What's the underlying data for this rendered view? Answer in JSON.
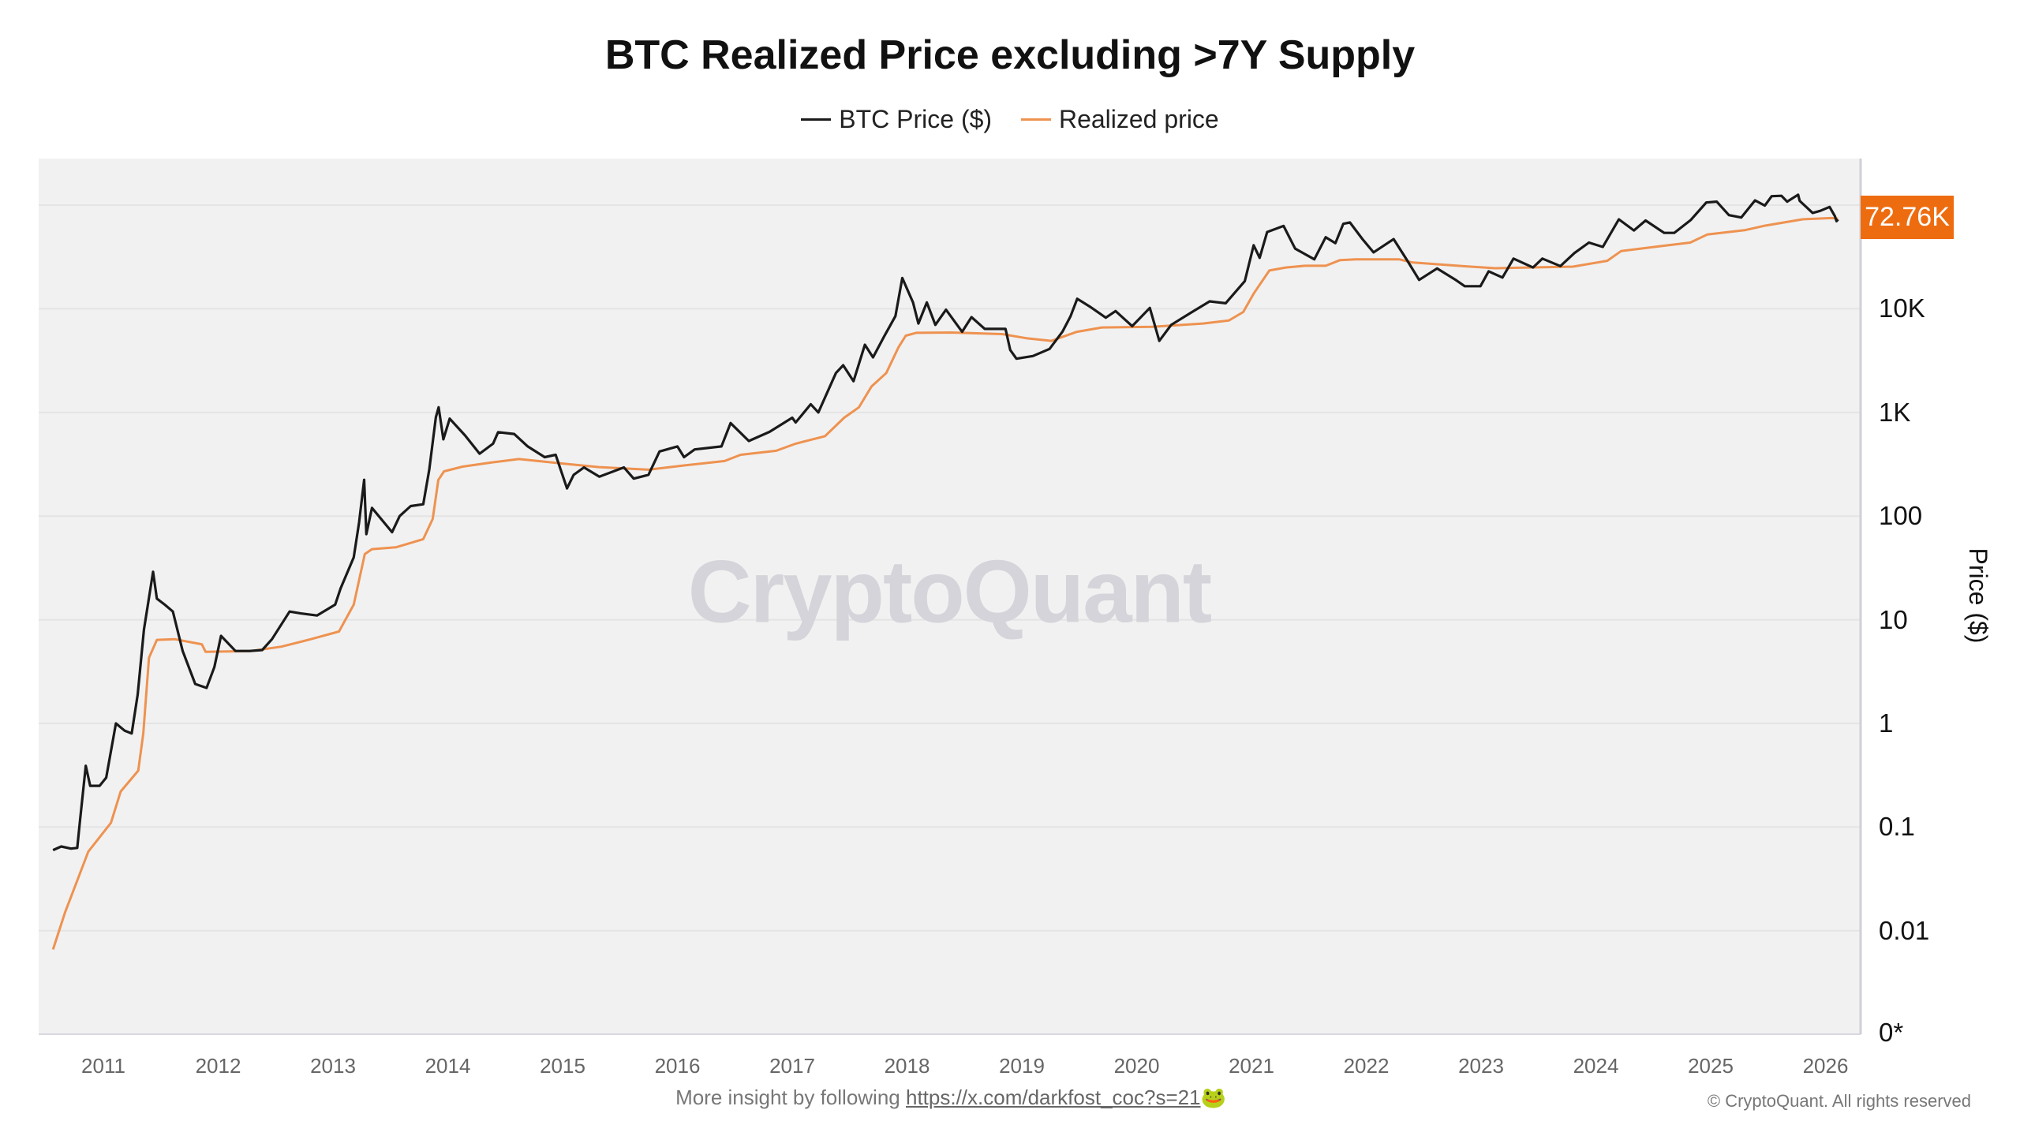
{
  "chart_data": {
    "type": "line",
    "title": "BTC Realized Price excluding >7Y Supply",
    "ylabel": "Price ($)",
    "yscale": "log",
    "ylim": [
      0.01,
      100000
    ],
    "y_ticks": [
      {
        "value": 0.01,
        "label": "0.01"
      },
      {
        "value": 0.1,
        "label": "0.1"
      },
      {
        "value": 1,
        "label": "1"
      },
      {
        "value": 10,
        "label": "10"
      },
      {
        "value": 100,
        "label": "100"
      },
      {
        "value": 1000,
        "label": "1K"
      },
      {
        "value": 10000,
        "label": "10K"
      }
    ],
    "y_zero_label": "0*",
    "x_ticks": [
      "2011",
      "2012",
      "2013",
      "2014",
      "2015",
      "2016",
      "2017",
      "2018",
      "2019",
      "2020",
      "2021",
      "2022",
      "2023",
      "2024",
      "2025",
      "2026"
    ],
    "grid": true,
    "legend_position": "top-center",
    "last_value_label": "72.76K",
    "last_value_color": "#ee6c10",
    "watermark": "CryptoQuant",
    "series": [
      {
        "name": "BTC Price ($)",
        "color": "#1a1a1a",
        "points": [
          [
            "2010-07-25",
            0.06
          ],
          [
            "2010-08-20",
            0.065
          ],
          [
            "2010-09-20",
            0.062
          ],
          [
            "2010-10-10",
            0.063
          ],
          [
            "2010-10-18",
            0.11
          ],
          [
            "2010-11-06",
            0.39
          ],
          [
            "2010-11-20",
            0.25
          ],
          [
            "2010-12-20",
            0.25
          ],
          [
            "2011-01-10",
            0.3
          ],
          [
            "2011-02-10",
            1.0
          ],
          [
            "2011-03-10",
            0.85
          ],
          [
            "2011-04-01",
            0.8
          ],
          [
            "2011-04-20",
            1.9
          ],
          [
            "2011-05-10",
            8
          ],
          [
            "2011-06-08",
            29
          ],
          [
            "2011-06-20",
            16
          ],
          [
            "2011-07-15",
            14
          ],
          [
            "2011-08-10",
            12
          ],
          [
            "2011-09-10",
            5
          ],
          [
            "2011-10-20",
            2.4
          ],
          [
            "2011-11-25",
            2.2
          ],
          [
            "2011-12-20",
            3.5
          ],
          [
            "2012-01-10",
            7
          ],
          [
            "2012-02-25",
            5
          ],
          [
            "2012-04-10",
            5
          ],
          [
            "2012-05-20",
            5.1
          ],
          [
            "2012-06-20",
            6.5
          ],
          [
            "2012-08-15",
            12
          ],
          [
            "2012-09-20",
            11.5
          ],
          [
            "2012-11-10",
            11
          ],
          [
            "2013-01-08",
            14
          ],
          [
            "2013-01-25",
            20
          ],
          [
            "2013-03-08",
            40
          ],
          [
            "2013-03-25",
            87
          ],
          [
            "2013-04-10",
            224
          ],
          [
            "2013-04-17",
            67
          ],
          [
            "2013-05-05",
            120
          ],
          [
            "2013-07-08",
            70
          ],
          [
            "2013-08-01",
            100
          ],
          [
            "2013-09-05",
            125
          ],
          [
            "2013-10-15",
            130
          ],
          [
            "2013-11-03",
            280
          ],
          [
            "2013-11-24",
            900
          ],
          [
            "2013-12-03",
            1120
          ],
          [
            "2013-12-18",
            550
          ],
          [
            "2014-01-07",
            870
          ],
          [
            "2014-02-25",
            600
          ],
          [
            "2014-04-12",
            400
          ],
          [
            "2014-05-25",
            500
          ],
          [
            "2014-06-10",
            645
          ],
          [
            "2014-07-31",
            620
          ],
          [
            "2014-09-12",
            470
          ],
          [
            "2014-11-05",
            370
          ],
          [
            "2014-12-10",
            390
          ],
          [
            "2015-01-15",
            185
          ],
          [
            "2015-02-05",
            250
          ],
          [
            "2015-03-10",
            295
          ],
          [
            "2015-04-28",
            240
          ],
          [
            "2015-07-15",
            295
          ],
          [
            "2015-08-15",
            230
          ],
          [
            "2015-10-01",
            250
          ],
          [
            "2015-11-05",
            420
          ],
          [
            "2016-01-01",
            470
          ],
          [
            "2016-01-22",
            370
          ],
          [
            "2016-02-25",
            440
          ],
          [
            "2016-05-20",
            470
          ],
          [
            "2016-06-18",
            790
          ],
          [
            "2016-08-15",
            530
          ],
          [
            "2016-10-20",
            650
          ],
          [
            "2017-01-01",
            890
          ],
          [
            "2017-01-12",
            800
          ],
          [
            "2017-03-01",
            1200
          ],
          [
            "2017-03-25",
            1000
          ],
          [
            "2017-05-20",
            2400
          ],
          [
            "2017-06-12",
            2850
          ],
          [
            "2017-07-15",
            2000
          ],
          [
            "2017-08-20",
            4500
          ],
          [
            "2017-09-15",
            3400
          ],
          [
            "2017-10-20",
            5400
          ],
          [
            "2017-11-25",
            8500
          ],
          [
            "2017-12-17",
            19800
          ],
          [
            "2018-01-20",
            11500
          ],
          [
            "2018-02-06",
            7200
          ],
          [
            "2018-03-05",
            11500
          ],
          [
            "2018-04-01",
            7000
          ],
          [
            "2018-05-05",
            9800
          ],
          [
            "2018-06-25",
            6000
          ],
          [
            "2018-07-25",
            8300
          ],
          [
            "2018-09-05",
            6400
          ],
          [
            "2018-11-10",
            6400
          ],
          [
            "2018-11-25",
            4000
          ],
          [
            "2018-12-15",
            3300
          ],
          [
            "2019-02-05",
            3500
          ],
          [
            "2019-03-30",
            4100
          ],
          [
            "2019-05-10",
            6000
          ],
          [
            "2019-06-05",
            8500
          ],
          [
            "2019-06-26",
            12500
          ],
          [
            "2019-08-05",
            10500
          ],
          [
            "2019-09-25",
            8200
          ],
          [
            "2019-10-26",
            9500
          ],
          [
            "2019-12-18",
            6800
          ],
          [
            "2020-02-12",
            10200
          ],
          [
            "2020-03-13",
            4900
          ],
          [
            "2020-04-20",
            7000
          ],
          [
            "2020-06-25",
            9300
          ],
          [
            "2020-08-20",
            11800
          ],
          [
            "2020-10-10",
            11300
          ],
          [
            "2020-12-10",
            18500
          ],
          [
            "2021-01-08",
            41000
          ],
          [
            "2021-01-27",
            31000
          ],
          [
            "2021-02-20",
            55000
          ],
          [
            "2021-04-13",
            63000
          ],
          [
            "2021-05-20",
            38000
          ],
          [
            "2021-07-20",
            30000
          ],
          [
            "2021-08-25",
            49000
          ],
          [
            "2021-09-25",
            43000
          ],
          [
            "2021-10-20",
            66000
          ],
          [
            "2021-11-10",
            68000
          ],
          [
            "2021-12-20",
            47000
          ],
          [
            "2022-01-24",
            35000
          ],
          [
            "2022-03-29",
            47000
          ],
          [
            "2022-05-12",
            29000
          ],
          [
            "2022-06-18",
            19000
          ],
          [
            "2022-08-14",
            24500
          ],
          [
            "2022-10-10",
            19200
          ],
          [
            "2022-11-10",
            16500
          ],
          [
            "2022-12-30",
            16500
          ],
          [
            "2023-01-25",
            23000
          ],
          [
            "2023-03-10",
            20000
          ],
          [
            "2023-04-14",
            30500
          ],
          [
            "2023-06-15",
            25000
          ],
          [
            "2023-07-15",
            30500
          ],
          [
            "2023-09-10",
            25800
          ],
          [
            "2023-10-25",
            34500
          ],
          [
            "2023-12-10",
            43500
          ],
          [
            "2024-01-23",
            39500
          ],
          [
            "2024-03-14",
            73000
          ],
          [
            "2024-05-01",
            57000
          ],
          [
            "2024-06-07",
            71000
          ],
          [
            "2024-08-05",
            54000
          ],
          [
            "2024-09-06",
            54000
          ],
          [
            "2024-10-29",
            72000
          ],
          [
            "2024-12-17",
            106000
          ],
          [
            "2025-01-20",
            108000
          ],
          [
            "2025-02-28",
            80000
          ],
          [
            "2025-04-08",
            76000
          ],
          [
            "2025-05-22",
            111000
          ],
          [
            "2025-06-22",
            99000
          ],
          [
            "2025-07-14",
            122000
          ],
          [
            "2025-08-14",
            123000
          ],
          [
            "2025-09-01",
            108000
          ],
          [
            "2025-10-06",
            126000
          ],
          [
            "2025-10-11",
            110000
          ],
          [
            "2025-11-21",
            84000
          ],
          [
            "2025-12-15",
            88000
          ],
          [
            "2026-01-14",
            96000
          ],
          [
            "2026-01-31",
            78000
          ],
          [
            "2026-02-05",
            70000
          ],
          [
            "2026-02-10",
            72760
          ]
        ]
      },
      {
        "name": "Realized price",
        "color": "#ee9250",
        "points": [
          [
            "2010-07-25",
            0.0066
          ],
          [
            "2010-09-01",
            0.015
          ],
          [
            "2010-11-14",
            0.058
          ],
          [
            "2011-01-25",
            0.11
          ],
          [
            "2011-02-25",
            0.22
          ],
          [
            "2011-04-22",
            0.35
          ],
          [
            "2011-05-08",
            0.8
          ],
          [
            "2011-05-26",
            4.3
          ],
          [
            "2011-06-20",
            6.4
          ],
          [
            "2011-08-15",
            6.5
          ],
          [
            "2011-11-10",
            5.8
          ],
          [
            "2011-11-22",
            4.9
          ],
          [
            "2012-04-15",
            5.0
          ],
          [
            "2012-07-20",
            5.5
          ],
          [
            "2012-10-22",
            6.5
          ],
          [
            "2013-01-20",
            7.7
          ],
          [
            "2013-03-08",
            14
          ],
          [
            "2013-04-12",
            43
          ],
          [
            "2013-05-05",
            48
          ],
          [
            "2013-07-20",
            50
          ],
          [
            "2013-10-15",
            60
          ],
          [
            "2013-11-14",
            94
          ],
          [
            "2013-12-02",
            223
          ],
          [
            "2013-12-20",
            270
          ],
          [
            "2014-02-17",
            300
          ],
          [
            "2014-05-22",
            330
          ],
          [
            "2014-08-15",
            355
          ],
          [
            "2015-01-05",
            320
          ],
          [
            "2015-04-27",
            297
          ],
          [
            "2015-10-01",
            280
          ],
          [
            "2016-01-22",
            308
          ],
          [
            "2016-05-30",
            340
          ],
          [
            "2016-07-20",
            390
          ],
          [
            "2016-11-10",
            427
          ],
          [
            "2017-01-12",
            500
          ],
          [
            "2017-04-15",
            590
          ],
          [
            "2017-06-15",
            890
          ],
          [
            "2017-08-01",
            1120
          ],
          [
            "2017-09-10",
            1780
          ],
          [
            "2017-10-27",
            2400
          ],
          [
            "2017-12-05",
            4250
          ],
          [
            "2017-12-28",
            5500
          ],
          [
            "2018-01-30",
            5860
          ],
          [
            "2018-05-22",
            5900
          ],
          [
            "2018-10-30",
            5700
          ],
          [
            "2019-01-15",
            5200
          ],
          [
            "2019-04-05",
            4900
          ],
          [
            "2019-06-25",
            6000
          ],
          [
            "2019-09-12",
            6600
          ],
          [
            "2020-02-20",
            6700
          ],
          [
            "2020-07-30",
            7200
          ],
          [
            "2020-10-20",
            7700
          ],
          [
            "2020-12-05",
            9300
          ],
          [
            "2021-01-08",
            14000
          ],
          [
            "2021-02-27",
            23400
          ],
          [
            "2021-04-20",
            25000
          ],
          [
            "2021-06-20",
            26000
          ],
          [
            "2021-08-25",
            26000
          ],
          [
            "2021-10-10",
            29500
          ],
          [
            "2021-11-28",
            30000
          ],
          [
            "2022-04-15",
            30000
          ],
          [
            "2022-05-26",
            28000
          ],
          [
            "2022-11-10",
            25700
          ],
          [
            "2023-02-15",
            24600
          ],
          [
            "2023-10-20",
            25500
          ],
          [
            "2024-02-06",
            29000
          ],
          [
            "2024-03-21",
            36000
          ],
          [
            "2024-07-20",
            40000
          ],
          [
            "2024-10-27",
            43500
          ],
          [
            "2024-12-20",
            52000
          ],
          [
            "2025-04-22",
            57500
          ],
          [
            "2025-06-18",
            63000
          ],
          [
            "2025-10-20",
            73000
          ],
          [
            "2026-01-20",
            75000
          ],
          [
            "2026-02-10",
            74000
          ]
        ]
      }
    ]
  },
  "footer": {
    "prefix": "More insight by following ",
    "link": "https://x.com/darkfost_coc?s=21",
    "emoji": "🐸",
    "copyright": "© CryptoQuant. All rights reserved"
  }
}
